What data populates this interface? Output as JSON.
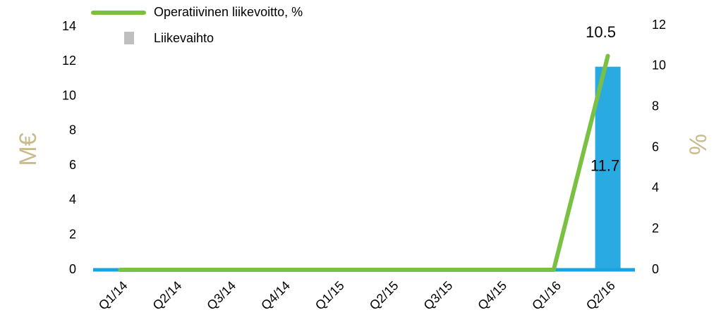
{
  "chart_data": {
    "type": "bar-line",
    "categories": [
      "Q1/14",
      "Q2/14",
      "Q3/14",
      "Q4/14",
      "Q1/15",
      "Q2/15",
      "Q3/15",
      "Q4/15",
      "Q1/16",
      "Q2/16"
    ],
    "series": [
      {
        "name": "Operatiivinen liikevoitto, %",
        "type": "line",
        "axis": "y2",
        "color": "#7ac143",
        "values": [
          0,
          0,
          0,
          0,
          0,
          0,
          0,
          0,
          0,
          10.5
        ]
      },
      {
        "name": "Liikevaihto",
        "type": "bar",
        "color": "#29abe2",
        "legend_color": "#bfbfbf",
        "values": [
          0,
          0,
          0,
          0,
          0,
          0,
          0,
          0,
          0,
          11.7
        ]
      }
    ],
    "ylabel": "M€",
    "y2label": "%",
    "axis_label_color": "#c9bb8e",
    "ylim": [
      0,
      14
    ],
    "yticks": [
      0,
      2,
      4,
      6,
      8,
      10,
      12,
      14
    ],
    "y2lim": [
      0,
      12
    ],
    "y2ticks": [
      0,
      2,
      4,
      6,
      8,
      10,
      12
    ],
    "grid": false,
    "legend": "top-left"
  }
}
